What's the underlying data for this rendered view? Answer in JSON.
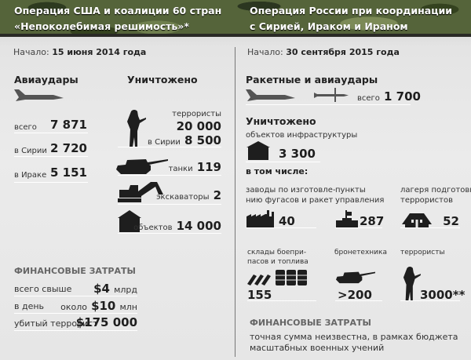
{
  "left": {
    "title1": "Операция США и коалиции 60 стран",
    "title2": "«Непоколебимая решимость»*",
    "start_label": "Начало:",
    "start_date": "15 июня 2014 года",
    "airstrikes": {
      "heading": "Авиаудары",
      "rows": [
        {
          "label": "всего",
          "value": "7 871"
        },
        {
          "label": "в Сирии",
          "value": "2 720"
        },
        {
          "label": "в Ираке",
          "value": "5 151"
        }
      ]
    },
    "destroyed": {
      "heading": "Уничтожено",
      "terrorists_label": "террористы",
      "terrorists_value": "20 000",
      "syria_label": "в Сирии",
      "syria_value": "8 500",
      "tanks_label": "танки",
      "tanks_value": "119",
      "excavators_label": "экскаваторы",
      "excavators_value": "2",
      "objects_label": "объектов",
      "objects_value": "14 000"
    },
    "finance": {
      "heading": "ФИНАНСОВЫЕ ЗАТРАТЫ",
      "rows": [
        {
          "label": "всего свыше",
          "prefix": "",
          "value": "$4",
          "unit": "млрд"
        },
        {
          "label": "в день",
          "prefix": "около",
          "value": "$10",
          "unit": "млн"
        },
        {
          "label": "убитый террорист",
          "prefix": "",
          "value": "$175 000",
          "unit": ""
        }
      ]
    }
  },
  "right": {
    "title1": "Операция России при координации",
    "title2": "с Сирией, Ираком и Ираном",
    "start_label": "Начало:",
    "start_date": "30 сентября 2015 года",
    "strikes": {
      "heading": "Ракетные и авиаудары",
      "total_label": "всего",
      "total_value": "1 700"
    },
    "destroyed": {
      "heading": "Уничтожено",
      "infra_label": "объектов инфраструктуры",
      "infra_value": "3 300",
      "including": "в том числе:",
      "items": [
        {
          "label1": "заводы по изготовле-",
          "label2": "нию фугасов и ракет",
          "value": "40",
          "icon": "factory-icon"
        },
        {
          "label1": "пункты",
          "label2": "управления",
          "value": "287",
          "icon": "command-post-icon"
        },
        {
          "label1": "лагеря подготовки",
          "label2": "террористов",
          "value": "52",
          "icon": "tent-icon"
        },
        {
          "label1": "склады боепри-",
          "label2": "пасов и топлива",
          "value": "155",
          "icon": "ammo-fuel-icon"
        },
        {
          "label1": "",
          "label2": "бронетехника",
          "value": ">200",
          "icon": "tank-icon"
        },
        {
          "label1": "",
          "label2": "террористы",
          "value": "3000**",
          "icon": "soldier-icon"
        }
      ]
    },
    "finance": {
      "heading": "ФИНАНСОВЫЕ ЗАТРАТЫ",
      "line1": "точная сумма неизвестна, в рамках бюджета",
      "line2": "масштабных военных учений"
    }
  }
}
